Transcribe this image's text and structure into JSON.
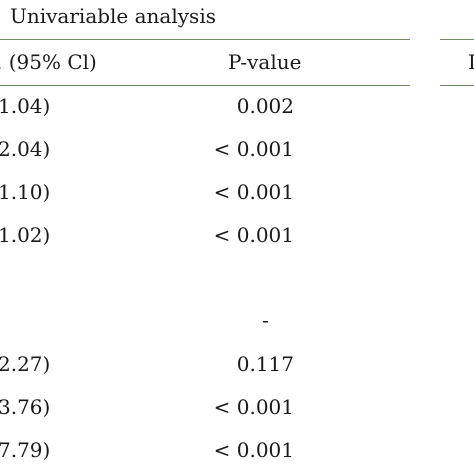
{
  "table": {
    "group_header": "Univariable analysis",
    "columns": {
      "ci": "(95% Cl)",
      "ci_prefix": ".",
      "p_value": "P-value",
      "edge_fragment": "I"
    },
    "rows": [
      {
        "ci": "1.04)",
        "p": "0.002"
      },
      {
        "ci": "2.04)",
        "p": "< 0.001"
      },
      {
        "ci": "1.10)",
        "p": "< 0.001"
      },
      {
        "ci": "1.02)",
        "p": "< 0.001"
      },
      {
        "ci": "",
        "p": "-"
      },
      {
        "ci": "2.27)",
        "p": "0.117"
      },
      {
        "ci": "3.76)",
        "p": "< 0.001"
      },
      {
        "ci": "7.79)",
        "p": "< 0.001"
      }
    ]
  }
}
